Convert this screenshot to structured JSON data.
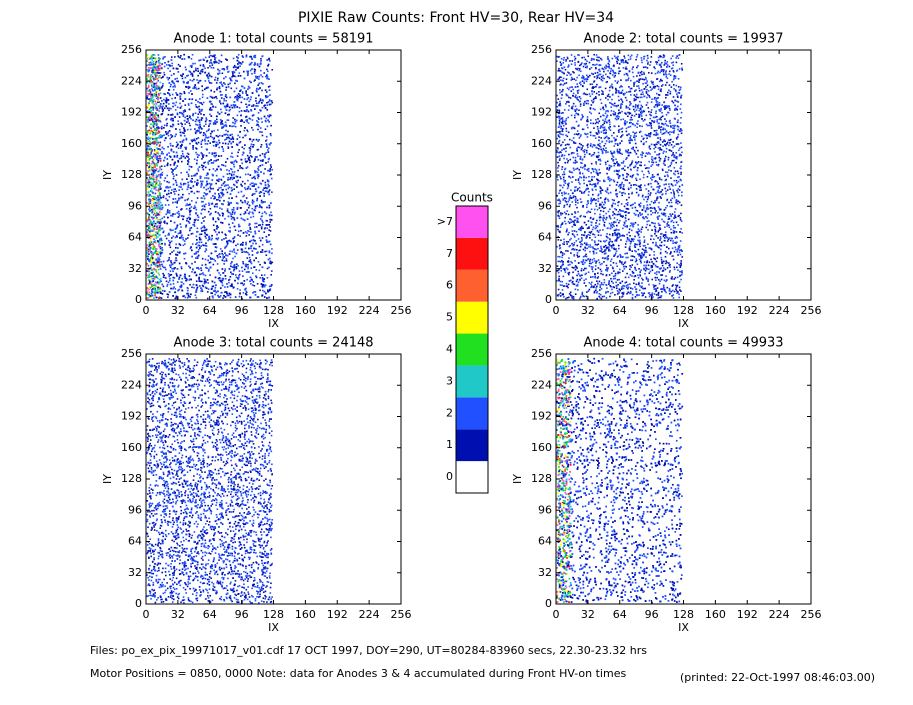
{
  "title": "PIXIE Raw Counts:  Front HV=30, Rear HV=34",
  "chart_data": [
    {
      "type": "heatmap",
      "title": "Anode 1: total counts = 58191",
      "x_label": "IX",
      "y_label": "IY",
      "xlim": [
        0,
        256
      ],
      "ylim": [
        0,
        256
      ],
      "xticks": [
        0,
        32,
        64,
        96,
        128,
        160,
        192,
        224,
        256
      ],
      "yticks": [
        0,
        32,
        64,
        96,
        128,
        160,
        192,
        224,
        256
      ]
    },
    {
      "type": "heatmap",
      "title": "Anode 2: total counts = 19937",
      "x_label": "IX",
      "y_label": "IY",
      "xlim": [
        0,
        256
      ],
      "ylim": [
        0,
        256
      ],
      "xticks": [
        0,
        32,
        64,
        96,
        128,
        160,
        192,
        224,
        256
      ],
      "yticks": [
        0,
        32,
        64,
        96,
        128,
        160,
        192,
        224,
        256
      ]
    },
    {
      "type": "heatmap",
      "title": "Anode 3: total counts = 24148",
      "x_label": "IX",
      "y_label": "IY",
      "xlim": [
        0,
        256
      ],
      "ylim": [
        0,
        256
      ],
      "xticks": [
        0,
        32,
        64,
        96,
        128,
        160,
        192,
        224,
        256
      ],
      "yticks": [
        0,
        32,
        64,
        96,
        128,
        160,
        192,
        224,
        256
      ]
    },
    {
      "type": "heatmap",
      "title": "Anode 4: total counts = 49933",
      "x_label": "IX",
      "y_label": "IY",
      "xlim": [
        0,
        256
      ],
      "ylim": [
        0,
        256
      ],
      "xticks": [
        0,
        32,
        64,
        96,
        128,
        160,
        192,
        224,
        256
      ],
      "yticks": [
        0,
        32,
        64,
        96,
        128,
        160,
        192,
        224,
        256
      ]
    }
  ],
  "colorbar": {
    "title": "Counts",
    "labels": [
      "0",
      "1",
      "2",
      "3",
      "4",
      "5",
      "6",
      "7",
      ">7"
    ],
    "colors": [
      "#ffffff",
      "#0010b0",
      "#2050ff",
      "#20c8c8",
      "#20e020",
      "#ffff00",
      "#ff6030",
      "#ff1010",
      "#ff50f0"
    ]
  },
  "footer": {
    "files": "Files: po_ex_pix_19971017_v01.cdf    17 OCT 1997, DOY=290, UT=80284-83960 secs, 22.30-23.32 hrs",
    "motor": "Motor Positions = 0850, 0000   Note: data for Anodes 3 & 4 accumulated during Front HV-on times",
    "printed": "(printed: 22-Oct-1997 08:46:03.00)"
  }
}
